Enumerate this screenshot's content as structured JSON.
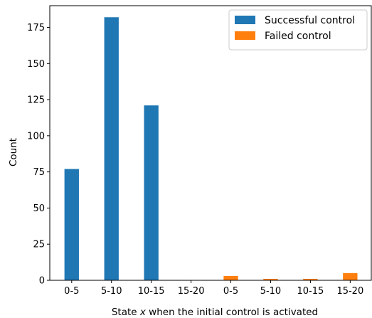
{
  "chart_data": {
    "type": "bar",
    "categories": [
      "0-5",
      "5-10",
      "10-15",
      "15-20",
      "0-5",
      "5-10",
      "10-15",
      "15-20"
    ],
    "series": [
      {
        "name": "Successful control",
        "color": "#1f77b4",
        "values": [
          77,
          182,
          121,
          0,
          null,
          null,
          null,
          null
        ]
      },
      {
        "name": "Failed control",
        "color": "#ff7f0e",
        "values": [
          null,
          null,
          null,
          null,
          3,
          1,
          1,
          5
        ]
      }
    ],
    "xlabel": "State x when the initial control is activated",
    "xlabel_prefix": "State ",
    "xlabel_var": "x",
    "xlabel_suffix": " when the initial control is activated",
    "ylabel": "Count",
    "ylim": [
      0,
      190
    ],
    "yticks": [
      0,
      25,
      50,
      75,
      100,
      125,
      150,
      175
    ],
    "legend_position": "top-right",
    "grid": false
  }
}
